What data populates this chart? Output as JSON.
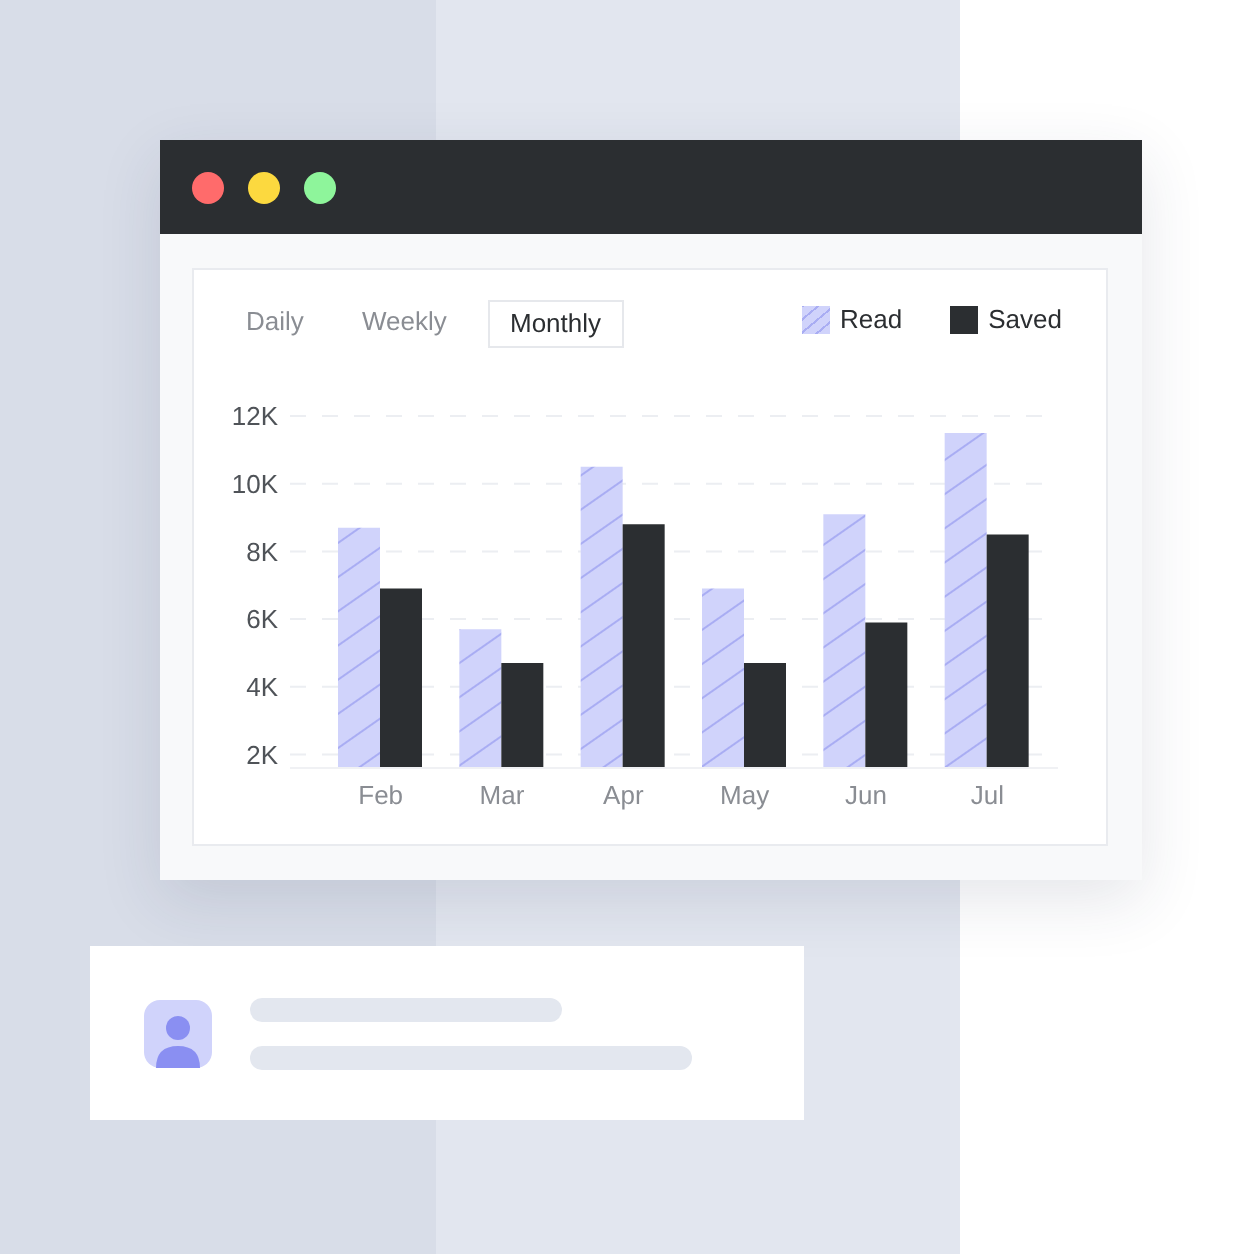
{
  "chart_data": {
    "type": "bar",
    "categories": [
      "Feb",
      "Mar",
      "Apr",
      "May",
      "Jun",
      "Jul"
    ],
    "series": [
      {
        "name": "Read",
        "color": "#d0d3fb",
        "values": [
          8700,
          5700,
          10500,
          6900,
          9100,
          11500
        ]
      },
      {
        "name": "Saved",
        "color": "#2b2e31",
        "values": [
          6900,
          4700,
          8800,
          4700,
          5900,
          8500
        ]
      }
    ],
    "ylim": [
      1600,
      12000
    ],
    "yticks": [
      {
        "value": 2000,
        "label": "2K"
      },
      {
        "value": 4000,
        "label": "4K"
      },
      {
        "value": 6000,
        "label": "6K"
      },
      {
        "value": 8000,
        "label": "8K"
      },
      {
        "value": 10000,
        "label": "10K"
      },
      {
        "value": 12000,
        "label": "12K"
      }
    ],
    "grid": "y",
    "legend": "top right",
    "annotations": [
      "Daily",
      "Weekly",
      "Monthly"
    ]
  }
}
